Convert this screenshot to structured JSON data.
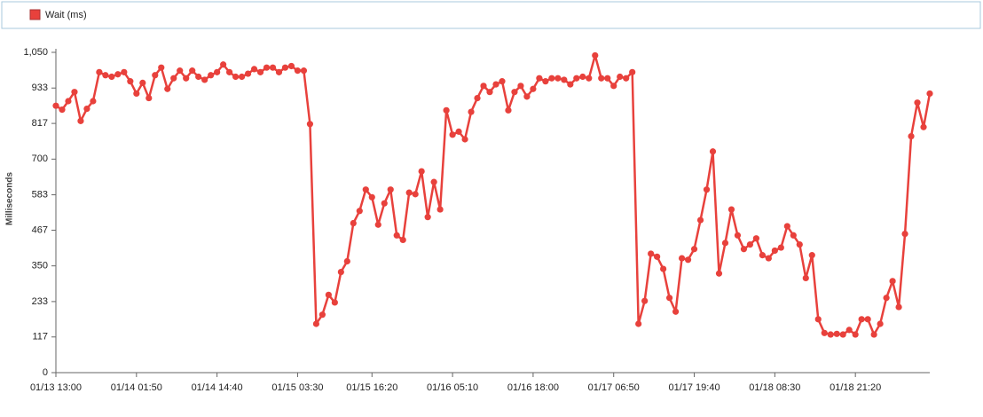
{
  "chart_data": {
    "type": "line",
    "y_label": "Milliseconds",
    "categories": [
      "01/13 13:00",
      null,
      null,
      null,
      null,
      null,
      null,
      null,
      null,
      null,
      null,
      null,
      null,
      "01/14 01:50",
      null,
      null,
      null,
      null,
      null,
      null,
      null,
      null,
      null,
      null,
      null,
      null,
      "01/14 14:40",
      null,
      null,
      null,
      null,
      null,
      null,
      null,
      null,
      null,
      null,
      null,
      null,
      "01/15 03:30",
      null,
      null,
      null,
      null,
      null,
      null,
      null,
      null,
      null,
      null,
      null,
      "01/15 16:20",
      null,
      null,
      null,
      null,
      null,
      null,
      null,
      null,
      null,
      null,
      null,
      null,
      "01/16 05:10",
      null,
      null,
      null,
      null,
      null,
      null,
      null,
      null,
      null,
      null,
      null,
      null,
      "01/16 18:00",
      null,
      null,
      null,
      null,
      null,
      null,
      null,
      null,
      null,
      null,
      null,
      null,
      "01/17 06:50",
      null,
      null,
      null,
      null,
      null,
      null,
      null,
      null,
      null,
      null,
      null,
      null,
      "01/17 19:40",
      null,
      null,
      null,
      null,
      null,
      null,
      null,
      null,
      null,
      null,
      null,
      null,
      "01/18 08:30",
      null,
      null,
      null,
      null,
      null,
      null,
      null,
      null,
      null,
      null,
      null,
      null,
      "01/18 21:20",
      null,
      null,
      null,
      null,
      null,
      null,
      null,
      null,
      null,
      null,
      null,
      null
    ],
    "series": [
      {
        "name": "Wait (ms)",
        "color": "#e8413c",
        "values": [
          875,
          862,
          890,
          920,
          825,
          865,
          890,
          985,
          975,
          970,
          978,
          985,
          955,
          915,
          950,
          900,
          975,
          1000,
          930,
          965,
          990,
          965,
          990,
          970,
          960,
          975,
          985,
          1010,
          985,
          970,
          970,
          980,
          995,
          985,
          1000,
          1000,
          985,
          1000,
          1005,
          990,
          990,
          815,
          160,
          190,
          255,
          230,
          330,
          365,
          490,
          530,
          600,
          575,
          485,
          555,
          600,
          450,
          435,
          590,
          585,
          660,
          510,
          625,
          535,
          860,
          780,
          790,
          765,
          855,
          900,
          940,
          920,
          945,
          955,
          860,
          920,
          940,
          905,
          930,
          965,
          955,
          965,
          965,
          960,
          945,
          965,
          970,
          965,
          1040,
          965,
          965,
          940,
          970,
          965,
          985,
          160,
          235,
          390,
          380,
          340,
          245,
          200,
          375,
          370,
          405,
          500,
          600,
          725,
          325,
          425,
          535,
          450,
          405,
          420,
          440,
          385,
          375,
          400,
          410,
          480,
          450,
          420,
          310,
          385,
          175,
          130,
          125,
          127,
          125,
          140,
          125,
          175,
          175,
          125,
          160,
          245,
          300,
          215,
          455,
          775,
          885,
          805,
          915
        ]
      }
    ],
    "ylim": [
      0,
      1050
    ],
    "yticks": [
      0,
      117,
      233,
      350,
      467,
      583,
      700,
      817,
      933,
      {
        "value": 1050,
        "label": "1,050"
      }
    ],
    "grid": false
  }
}
